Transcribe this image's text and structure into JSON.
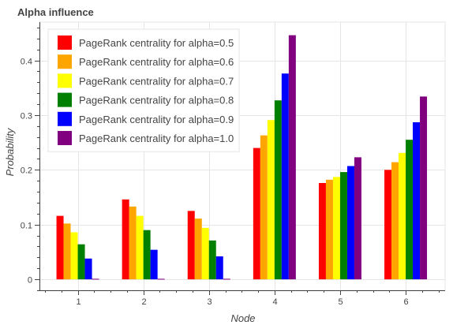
{
  "chart_data": {
    "type": "bar",
    "title": "Alpha influence",
    "xlabel": "Node",
    "ylabel": "Probability",
    "categories": [
      "1",
      "2",
      "3",
      "4",
      "5",
      "6"
    ],
    "ylim": [
      -0.02,
      0.47
    ],
    "yticks": [
      0,
      0.1,
      0.2,
      0.3,
      0.4
    ],
    "ytick_labels": [
      "0",
      "0.1",
      "0.2",
      "0.3",
      "0.4"
    ],
    "grid": true,
    "legend_position": "top-left",
    "series": [
      {
        "name": "PageRank centrality for alpha=0.5",
        "color": "#ff0000",
        "values": [
          0.116,
          0.146,
          0.125,
          0.24,
          0.176,
          0.2
        ]
      },
      {
        "name": "PageRank centrality for alpha=0.6",
        "color": "#ffa500",
        "values": [
          0.102,
          0.133,
          0.111,
          0.263,
          0.182,
          0.214
        ]
      },
      {
        "name": "PageRank centrality for alpha=0.7",
        "color": "#ffff00",
        "values": [
          0.086,
          0.116,
          0.094,
          0.291,
          0.187,
          0.231
        ]
      },
      {
        "name": "PageRank centrality for alpha=0.8",
        "color": "#008000",
        "values": [
          0.064,
          0.09,
          0.071,
          0.327,
          0.196,
          0.255
        ]
      },
      {
        "name": "PageRank centrality for alpha=0.9",
        "color": "#0000ff",
        "values": [
          0.038,
          0.054,
          0.042,
          0.376,
          0.207,
          0.287
        ]
      },
      {
        "name": "PageRank centrality for alpha=1.0",
        "color": "#800080",
        "values": [
          0.001,
          0.001,
          0.001,
          0.446,
          0.223,
          0.334
        ]
      }
    ]
  }
}
